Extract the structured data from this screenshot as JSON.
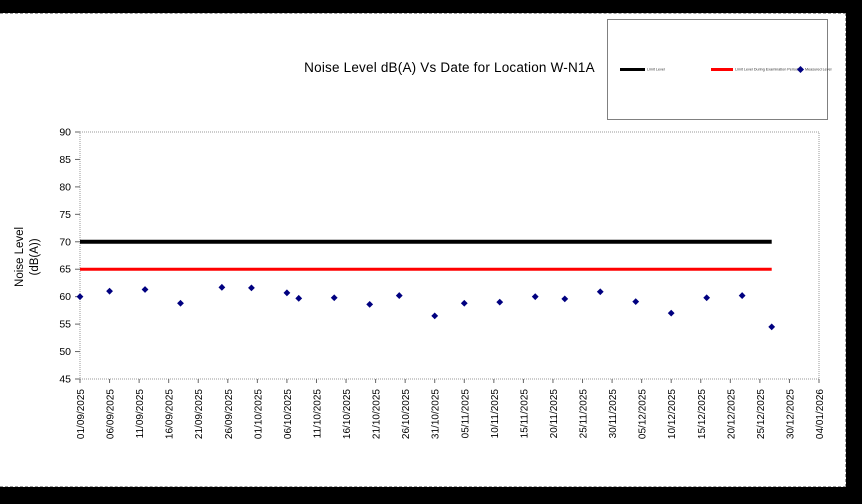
{
  "colors": {
    "frame": "#000000",
    "panel": "#ffffff",
    "plot_border": "#999999",
    "axis_tick": "#666666",
    "text": "#000000",
    "limit_line": "#000000",
    "exam_limit_line": "#ff0000",
    "measured_marker": "#000080"
  },
  "chart_data": {
    "type": "scatter",
    "title": "Noise Level dB(A) Vs Date for Location W-N1A",
    "ylabel": "Noise Level (dB(A))",
    "ylabel_lines": [
      "Noise Level",
      "(dB(A))"
    ],
    "xlabel": "",
    "ylim": [
      45,
      90
    ],
    "ytick_step": 5,
    "grid": false,
    "legend_position": "top-right",
    "x_tick_labels": [
      "01/09/2025",
      "06/09/2025",
      "11/09/2025",
      "16/09/2025",
      "21/09/2025",
      "26/09/2025",
      "01/10/2025",
      "06/10/2025",
      "11/10/2025",
      "16/10/2025",
      "21/10/2025",
      "26/10/2025",
      "31/10/2025",
      "05/11/2025",
      "10/11/2025",
      "15/11/2025",
      "20/11/2025",
      "25/11/2025",
      "30/11/2025",
      "05/12/2025",
      "10/12/2025",
      "15/12/2025",
      "20/12/2025",
      "25/12/2025",
      "30/12/2025",
      "04/01/2026"
    ],
    "series": [
      {
        "name": "Limit Level",
        "type": "line",
        "color": "#000000",
        "line_width": 4,
        "value": 70
      },
      {
        "name": "Limit Level During Examination Period",
        "type": "line",
        "color": "#ff0000",
        "line_width": 3,
        "value": 65
      },
      {
        "name": "Measured Level",
        "type": "scatter",
        "marker": "diamond",
        "color": "#000080",
        "x": [
          "01/09/2025",
          "06/09/2025",
          "12/09/2025",
          "18/09/2025",
          "25/09/2025",
          "30/09/2025",
          "06/10/2025",
          "08/10/2025",
          "14/10/2025",
          "20/10/2025",
          "25/10/2025",
          "31/10/2025",
          "05/11/2025",
          "11/11/2025",
          "17/11/2025",
          "22/11/2025",
          "28/11/2025",
          "04/12/2025",
          "10/12/2025",
          "16/12/2025",
          "22/12/2025",
          "27/12/2025"
        ],
        "values": [
          60.0,
          61.0,
          61.3,
          58.8,
          61.7,
          61.6,
          60.7,
          59.7,
          59.8,
          58.6,
          60.2,
          56.5,
          58.8,
          59.0,
          60.0,
          59.6,
          60.9,
          59.1,
          57.0,
          59.8,
          60.2,
          54.5
        ]
      }
    ]
  }
}
